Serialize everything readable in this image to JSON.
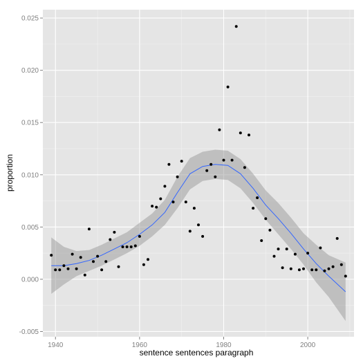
{
  "chart_data": {
    "type": "scatter",
    "xlabel": "sentence sentences paragraph",
    "ylabel": "proportion",
    "xlim": [
      1937,
      2011
    ],
    "ylim": [
      -0.0055,
      0.0258
    ],
    "grid": true,
    "colors": {
      "panel": "#e5e5e5",
      "grid_major": "#ffffff",
      "grid_minor": "#f2f2f2",
      "point": "#000000",
      "smooth_line": "#3366ff",
      "band": "#999999"
    },
    "x_ticks": [
      1940,
      1960,
      1980,
      2000
    ],
    "x_tick_labels": [
      "1940",
      "1960",
      "1980",
      "2000"
    ],
    "y_ticks": [
      -0.005,
      0,
      0.005,
      0.01,
      0.015,
      0.02,
      0.025
    ],
    "y_tick_labels": [
      "-0.005",
      "0.000",
      "0.005",
      "0.010",
      "0.015",
      "0.020",
      "0.025"
    ],
    "points": {
      "x": [
        1939,
        1940,
        1941,
        1942,
        1943,
        1944,
        1945,
        1946,
        1947,
        1948,
        1949,
        1950,
        1951,
        1952,
        1953,
        1954,
        1955,
        1956,
        1957,
        1958,
        1959,
        1960,
        1961,
        1962,
        1963,
        1964,
        1965,
        1966,
        1967,
        1968,
        1969,
        1970,
        1971,
        1972,
        1973,
        1974,
        1975,
        1976,
        1977,
        1978,
        1979,
        1980,
        1981,
        1982,
        1983,
        1984,
        1985,
        1986,
        1987,
        1988,
        1989,
        1990,
        1991,
        1992,
        1993,
        1994,
        1995,
        1996,
        1997,
        1998,
        1999,
        2000,
        2001,
        2002,
        2003,
        2004,
        2005,
        2006,
        2007,
        2008,
        2009
      ],
      "y": [
        0.0023,
        0.0009,
        0.0009,
        0.0013,
        0.001,
        0.0024,
        0.001,
        0.0021,
        0.0004,
        0.0048,
        0.0017,
        0.0022,
        0.0009,
        0.0017,
        0.0038,
        0.0045,
        0.0012,
        0.0031,
        0.0031,
        0.0031,
        0.0032,
        0.0041,
        0.0014,
        0.0019,
        0.007,
        0.0069,
        0.0077,
        0.0089,
        0.011,
        0.0074,
        0.0098,
        0.0113,
        0.0074,
        0.0046,
        0.0068,
        0.0052,
        0.0041,
        0.0104,
        0.011,
        0.0098,
        0.0143,
        0.0114,
        0.0184,
        0.0114,
        0.0242,
        0.014,
        0.0107,
        0.0138,
        0.0068,
        0.0078,
        0.0037,
        0.0058,
        0.0047,
        0.0022,
        0.0029,
        0.0011,
        0.0029,
        0.001,
        0.0024,
        0.0009,
        0.001,
        0.0025,
        0.0009,
        0.0009,
        0.003,
        0.0008,
        0.001,
        0.0012,
        0.0039,
        0.0014,
        0.0003
      ]
    },
    "smooth": {
      "x": [
        1939,
        1942,
        1945,
        1948,
        1951,
        1954,
        1957,
        1960,
        1963,
        1966,
        1969,
        1972,
        1975,
        1978,
        1981,
        1984,
        1987,
        1990,
        1993,
        1996,
        1999,
        2002,
        2005,
        2009
      ],
      "y": [
        0.0013,
        0.0013,
        0.0015,
        0.0018,
        0.0023,
        0.0029,
        0.0035,
        0.0043,
        0.0052,
        0.0064,
        0.0083,
        0.0101,
        0.0108,
        0.011,
        0.0109,
        0.0101,
        0.0087,
        0.0071,
        0.0058,
        0.0044,
        0.0029,
        0.0015,
        0.0003,
        -0.0012
      ],
      "lower": [
        -0.0014,
        -0.0005,
        0.0003,
        0.0008,
        0.0013,
        0.0019,
        0.0025,
        0.0032,
        0.0041,
        0.0052,
        0.0068,
        0.0086,
        0.0094,
        0.0096,
        0.0095,
        0.0087,
        0.0073,
        0.0057,
        0.0043,
        0.0029,
        0.0014,
        -0.0003,
        -0.0017,
        -0.004
      ],
      "upper": [
        0.004,
        0.0031,
        0.0027,
        0.0028,
        0.0033,
        0.0039,
        0.0045,
        0.0054,
        0.0063,
        0.0076,
        0.0098,
        0.0116,
        0.0122,
        0.0124,
        0.0123,
        0.0115,
        0.0101,
        0.0085,
        0.0073,
        0.0059,
        0.0044,
        0.0033,
        0.0023,
        0.0016
      ]
    }
  }
}
